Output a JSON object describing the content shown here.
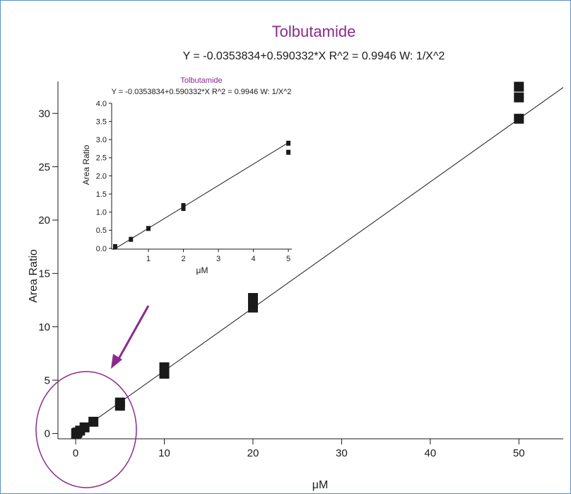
{
  "chart_data": [
    {
      "type": "scatter",
      "title": "Tolbutamide",
      "subtitle": "Y = -0.0353834+0.590332*X   R^2 = 0.9946   W: 1/X^2",
      "xlabel": "μM",
      "ylabel": "Area Ratio",
      "xlim": [
        -2,
        55
      ],
      "ylim": [
        -0.5,
        33
      ],
      "xticks": [
        0,
        10,
        20,
        30,
        40,
        50
      ],
      "yticks": [
        0,
        5,
        10,
        15,
        20,
        25,
        30
      ],
      "grid": false,
      "fit": {
        "intercept": -0.0353834,
        "slope": 0.590332,
        "r2": 0.9946,
        "weighting": "1/X^2"
      },
      "points": [
        {
          "x": 0.05,
          "y": 0.0
        },
        {
          "x": 0.1,
          "y": 0.03
        },
        {
          "x": 0.2,
          "y": 0.09
        },
        {
          "x": 0.5,
          "y": 0.27
        },
        {
          "x": 1,
          "y": 0.57
        },
        {
          "x": 2,
          "y": 1.1
        },
        {
          "x": 5,
          "y": 2.6
        },
        {
          "x": 5,
          "y": 2.9
        },
        {
          "x": 10,
          "y": 5.6
        },
        {
          "x": 10,
          "y": 6.2
        },
        {
          "x": 20,
          "y": 11.8
        },
        {
          "x": 20,
          "y": 12.7
        },
        {
          "x": 50,
          "y": 29.5
        },
        {
          "x": 50,
          "y": 31.5
        },
        {
          "x": 50,
          "y": 32.5
        }
      ],
      "color": "#1a1a1a",
      "title_color": "#8b2a8b"
    },
    {
      "type": "scatter",
      "title": "Tolbutamide",
      "subtitle": "Y = -0.0353834+0.590332*X   R^2 = 0.9946   W: 1/X^2",
      "xlabel": "μM",
      "ylabel": "Area Ratio",
      "xlim": [
        -0.05,
        5.1
      ],
      "ylim": [
        -0.02,
        4.0
      ],
      "xticks": [
        1,
        2,
        3,
        4,
        5
      ],
      "yticks": [
        0.0,
        0.5,
        1.0,
        1.5,
        2.0,
        2.5,
        3.0,
        3.5,
        4.0
      ],
      "ytick_labels": [
        "0.0",
        "0.5",
        "1.0",
        "1.5",
        "2.0",
        "2.5",
        "3.0",
        "3.5",
        "4.0"
      ],
      "grid": false,
      "points": [
        {
          "x": 0.05,
          "y": 0.05
        },
        {
          "x": 0.5,
          "y": 0.25
        },
        {
          "x": 1,
          "y": 0.55
        },
        {
          "x": 2,
          "y": 1.1
        },
        {
          "x": 2,
          "y": 1.18
        },
        {
          "x": 5,
          "y": 2.65
        },
        {
          "x": 5,
          "y": 2.9
        }
      ]
    }
  ],
  "annotations": {
    "circle_color": "#8b2a8b",
    "arrow_color": "#8b2a8b"
  }
}
